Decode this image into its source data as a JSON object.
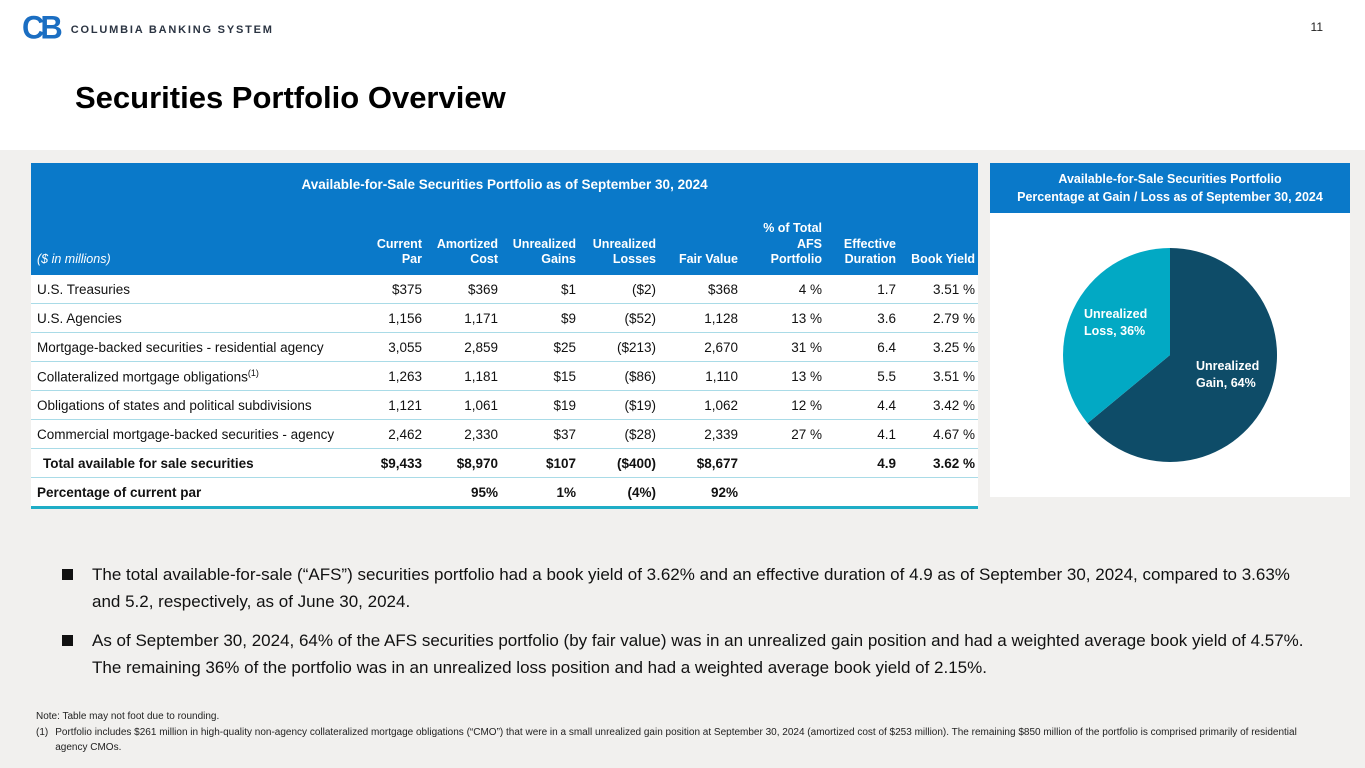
{
  "page": {
    "number": "11"
  },
  "brand": {
    "logo_text": "CB",
    "name": "COLUMBIA BANKING SYSTEM"
  },
  "slide_title": "Securities Portfolio Overview",
  "table": {
    "title": "Available-for-Sale Securities Portfolio as of September 30, 2024",
    "unit_label": "($ in millions)",
    "columns": [
      "Current Par",
      "Amortized Cost",
      "Unrealized Gains",
      "Unrealized Losses",
      "Fair Value",
      "% of Total AFS Portfolio",
      "Effective Duration",
      "Book Yield"
    ],
    "rows": [
      {
        "label": "U.S. Treasuries",
        "cells": [
          "$375",
          "$369",
          "$1",
          "($2)",
          "$368",
          "4 %",
          "1.7",
          "3.51 %"
        ]
      },
      {
        "label": "U.S. Agencies",
        "cells": [
          "1,156",
          "1,171",
          "$9",
          "($52)",
          "1,128",
          "13 %",
          "3.6",
          "2.79 %"
        ]
      },
      {
        "label": "Mortgage-backed securities - residential agency",
        "cells": [
          "3,055",
          "2,859",
          "$25",
          "($213)",
          "2,670",
          "31 %",
          "6.4",
          "3.25 %"
        ]
      },
      {
        "label": "Collateralized mortgage obligations",
        "sup": "(1)",
        "cells": [
          "1,263",
          "1,181",
          "$15",
          "($86)",
          "1,110",
          "13 %",
          "5.5",
          "3.51 %"
        ]
      },
      {
        "label": "Obligations of states and political subdivisions",
        "cells": [
          "1,121",
          "1,061",
          "$19",
          "($19)",
          "1,062",
          "12 %",
          "4.4",
          "3.42 %"
        ]
      },
      {
        "label": "Commercial mortgage-backed securities - agency",
        "cells": [
          "2,462",
          "2,330",
          "$37",
          "($28)",
          "2,339",
          "27 %",
          "4.1",
          "4.67 %"
        ]
      },
      {
        "label": "Total available for sale securities",
        "cells": [
          "$9,433",
          "$8,970",
          "$107",
          "($400)",
          "$8,677",
          "",
          "4.9",
          "3.62 %"
        ]
      },
      {
        "label": "Percentage of current par",
        "cells": [
          "",
          "95%",
          "1%",
          "(4%)",
          "92%",
          "",
          "",
          ""
        ]
      }
    ]
  },
  "chart_data": {
    "type": "pie",
    "title": "Available-for-Sale Securities Portfolio",
    "subtitle": "Percentage at Gain / Loss as of September 30, 2024",
    "start_angle_deg": 0,
    "direction": "clockwise",
    "legend_position": "none",
    "labels_inside": true,
    "slices": [
      {
        "label": "Unrealized Gain",
        "value": 64,
        "color": "#0e4c68",
        "display": "Unrealized Gain, 64%"
      },
      {
        "label": "Unrealized Loss",
        "value": 36,
        "color": "#02a9c4",
        "display": "Unrealized Loss, 36%"
      }
    ]
  },
  "bullets": [
    "The total available-for-sale (“AFS”) securities portfolio had a book yield of 3.62% and an effective duration of 4.9 as of September 30, 2024, compared to 3.63% and 5.2, respectively, as of June 30, 2024.",
    "As of September 30, 2024, 64% of the AFS securities portfolio (by fair value) was in an unrealized gain position and had a weighted average book yield of 4.57%. The remaining 36% of the portfolio was in an unrealized loss position and had a weighted average book yield of 2.15%."
  ],
  "notes": {
    "rounding": "Note: Table may not foot due to rounding.",
    "footnote_mark": "(1)",
    "footnote_text": "Portfolio includes $261 million in high-quality non-agency collateralized mortgage obligations (“CMO”) that were in a small unrealized gain position at September 30, 2024 (amortized cost of $253 million). The remaining $850 million of the portfolio is comprised primarily of residential agency CMOs."
  },
  "colors": {
    "header_blue": "#0a79c9",
    "row_separator": "#a9dbe7",
    "bottom_rule": "#1fadc6",
    "gain_navy": "#0e4c68",
    "loss_teal": "#02a9c4"
  }
}
